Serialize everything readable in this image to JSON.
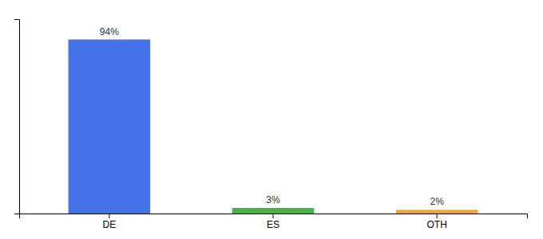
{
  "chart_data": {
    "type": "bar",
    "categories": [
      "DE",
      "ES",
      "OTH"
    ],
    "values": [
      94,
      3,
      2
    ],
    "value_labels": [
      "94%",
      "3%",
      "2%"
    ],
    "colors": [
      "#4472e8",
      "#3db83d",
      "#f5a623"
    ],
    "ylim": [
      0,
      105
    ],
    "yticks": [],
    "data_labels": true,
    "tick_labels": "x"
  }
}
